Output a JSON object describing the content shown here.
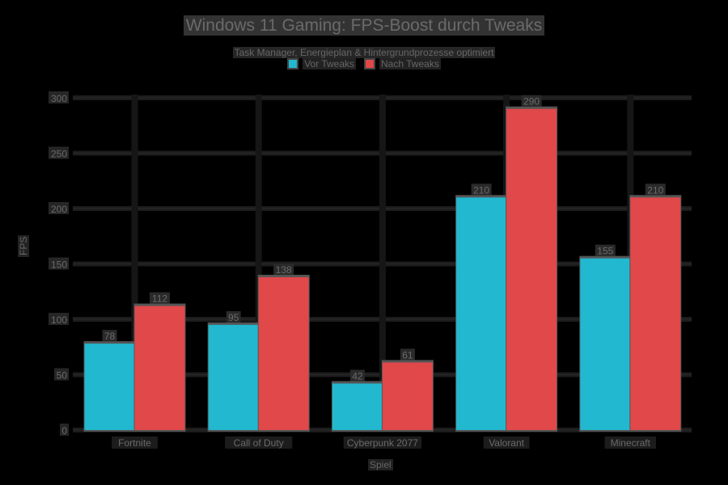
{
  "header": {
    "title": "Windows 11 Gaming: FPS-Boost durch Tweaks",
    "subtitle": "Task Manager, Energieplan & Hintergrundprozesse optimiert"
  },
  "legend": {
    "items": [
      {
        "label": "Vor Tweaks",
        "color": "#22b8cf"
      },
      {
        "label": "Nach Tweaks",
        "color": "#e0484a"
      }
    ]
  },
  "axes": {
    "xlabel": "Spiel",
    "ylabel": "FPS"
  },
  "chart_data": {
    "type": "bar",
    "title": "Windows 11 Gaming: FPS-Boost durch Tweaks",
    "subtitle": "Task Manager, Energieplan & Hintergrundprozesse optimiert",
    "xlabel": "Spiel",
    "ylabel": "FPS",
    "categories": [
      "Fortnite",
      "Call of Duty",
      "Cyberpunk 2077",
      "Valorant",
      "Minecraft"
    ],
    "series": [
      {
        "name": "Vor Tweaks",
        "color": "#22b8cf",
        "values": [
          78,
          95,
          42,
          210,
          155
        ]
      },
      {
        "name": "Nach Tweaks",
        "color": "#e0484a",
        "values": [
          112,
          138,
          61,
          290,
          210
        ]
      }
    ],
    "ylim": [
      0,
      300
    ],
    "yticks": [
      0,
      50,
      100,
      150,
      200,
      250,
      300
    ],
    "grid": true,
    "legend_position": "top-center",
    "data_labels": true
  }
}
